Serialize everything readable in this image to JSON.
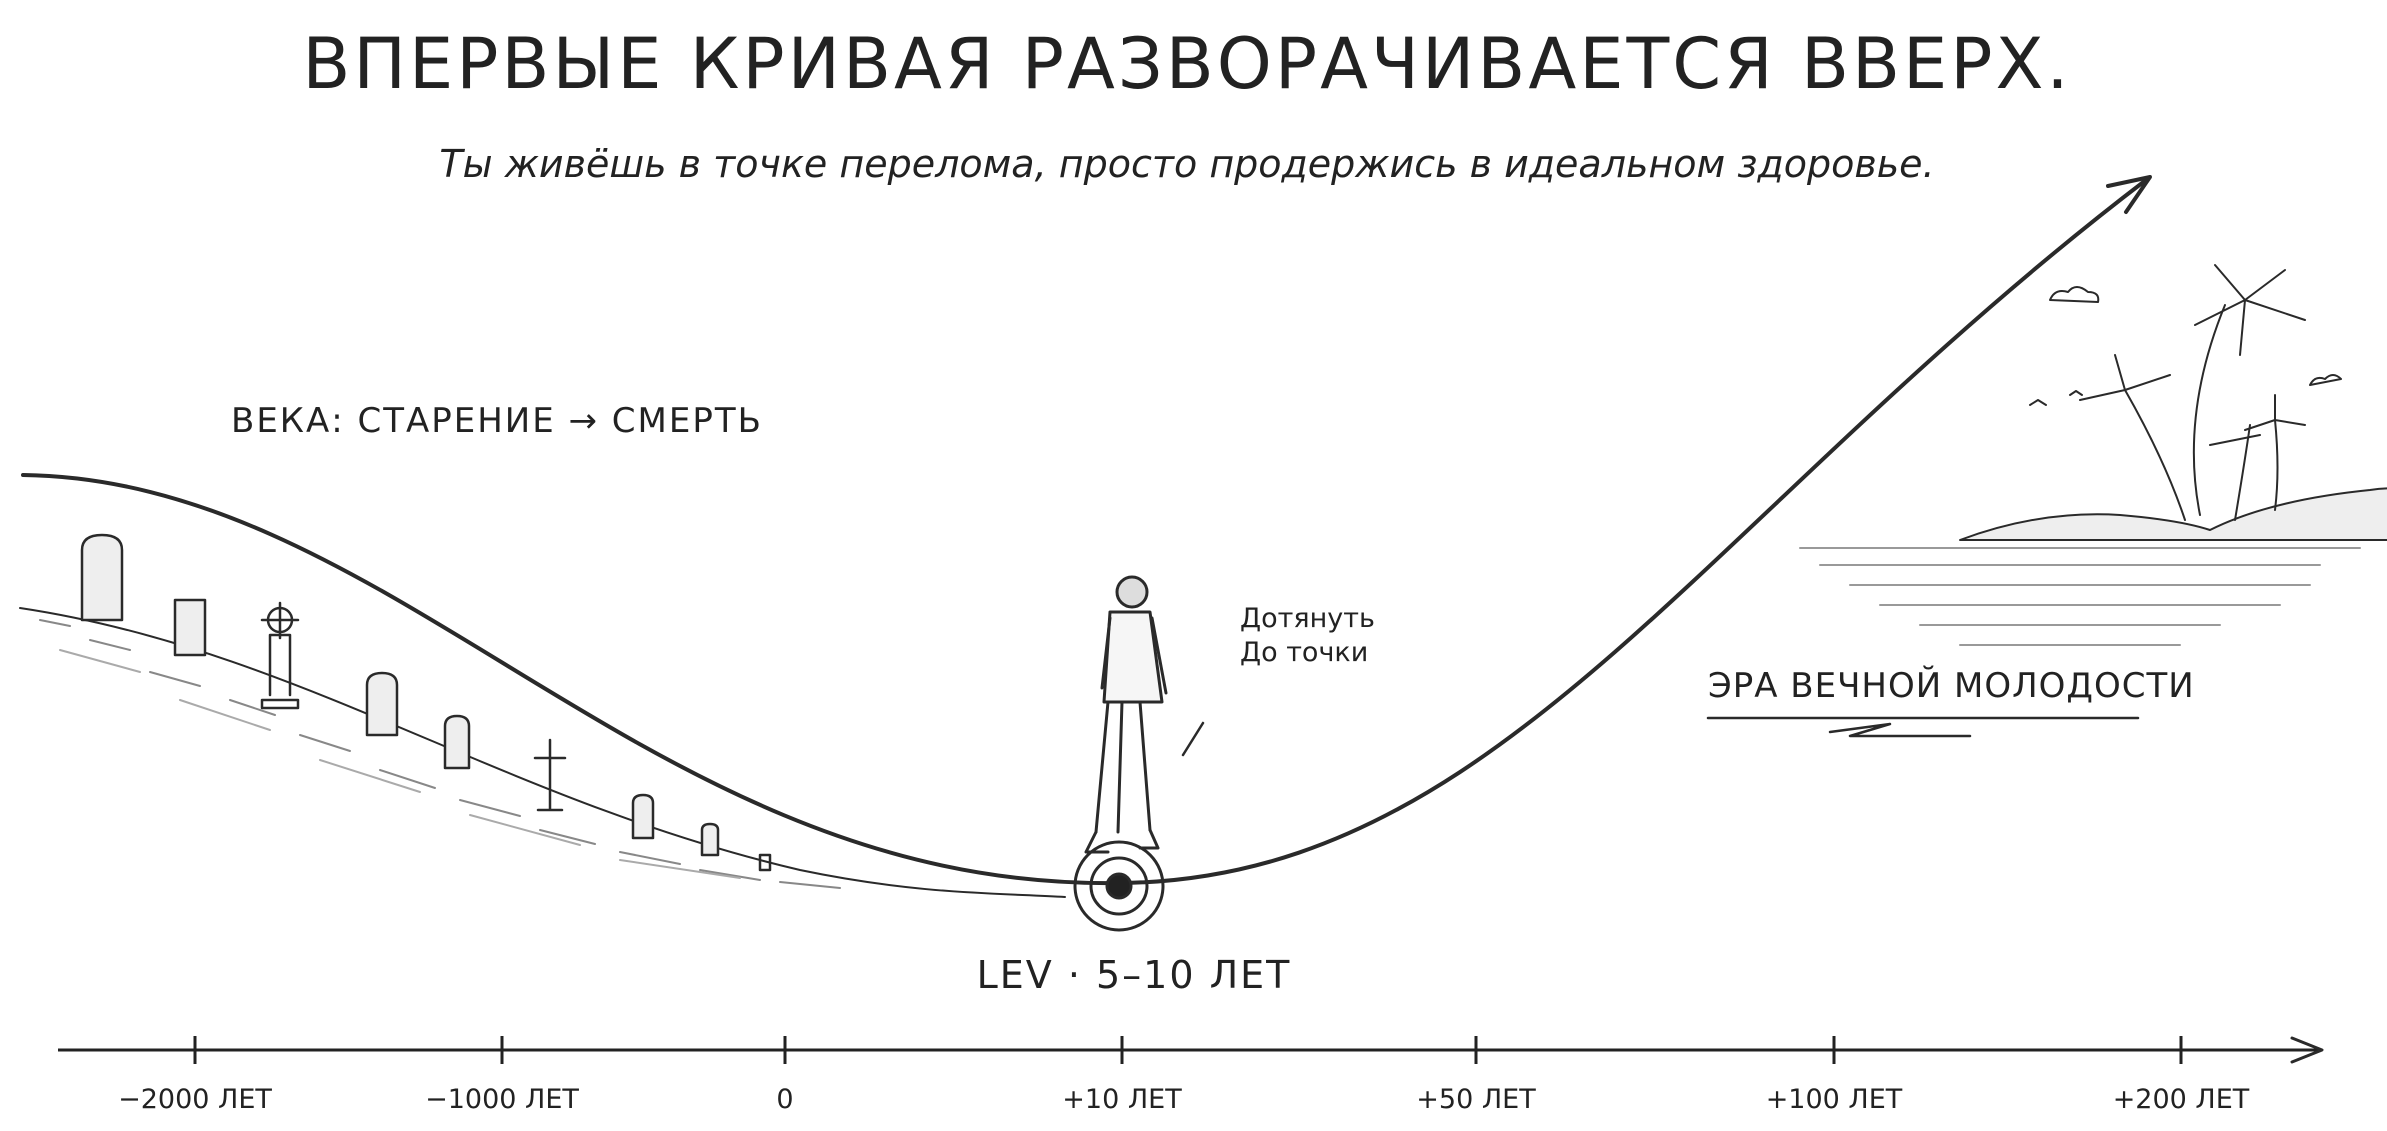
{
  "header": {
    "title": "ВПЕРВЫЕ КРИВАЯ РАЗВОРАЧИВАЕТСЯ ВВЕРХ.",
    "subtitle": "Ты живёшь в точке перелома, просто продержись в идеальном здоровье."
  },
  "labels": {
    "past": "ВЕКА: СТАРЕНИЕ → СМЕРТЬ",
    "reach": [
      "Дотянуть",
      "До точки"
    ],
    "future": "ЭРА ВЕЧНОЙ МОЛОДОСТИ",
    "lev": "LEV · 5–10 ЛЕТ"
  },
  "axis": {
    "ticks": [
      "−2000 ЛЕТ",
      "−1000 ЛЕТ",
      "0",
      "+10 ЛЕТ",
      "+50 ЛЕТ",
      "+100 ЛЕТ",
      "+200 ЛЕТ"
    ]
  }
}
